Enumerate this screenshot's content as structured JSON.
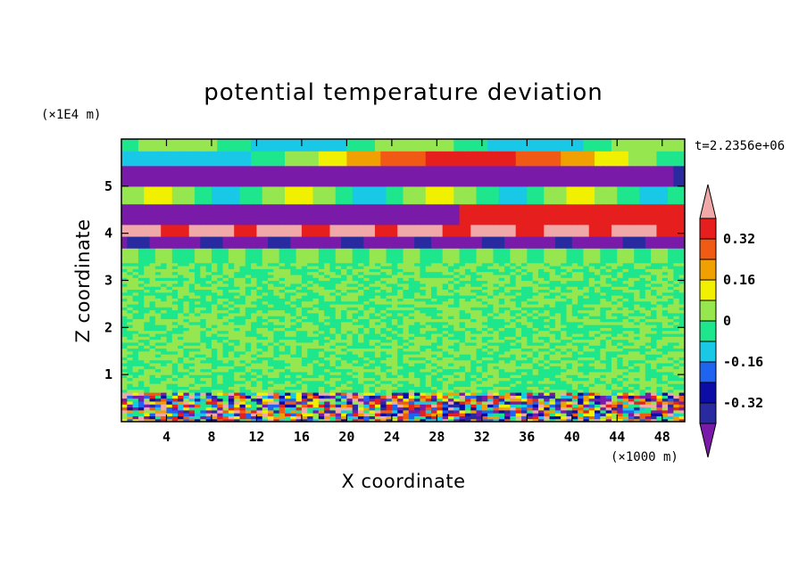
{
  "chart_data": {
    "type": "heatmap",
    "title": "potential temperature deviation",
    "xlabel": "X coordinate",
    "ylabel": "Z coordinate",
    "x_unit": "(×1000 m)",
    "y_unit": "(×1E4 m)",
    "time_label": "t=2.2356e+06",
    "xlim": [
      0,
      50
    ],
    "ylim": [
      0,
      6
    ],
    "x_ticks": [
      4,
      8,
      12,
      16,
      20,
      24,
      28,
      32,
      36,
      40,
      44,
      48
    ],
    "y_ticks": [
      1,
      2,
      3,
      4,
      5
    ],
    "colorbar": {
      "levels": [
        -0.48,
        -0.4,
        -0.32,
        -0.24,
        -0.16,
        -0.08,
        0,
        0.08,
        0.16,
        0.24,
        0.32,
        0.4
      ],
      "colors": [
        "#7a1aa8",
        "#2a2aa0",
        "#0c0ca6",
        "#1e64f0",
        "#19c8e6",
        "#1ee68c",
        "#96e650",
        "#f0f000",
        "#f0a000",
        "#f05a14",
        "#e61e1e",
        "#f0a8a8"
      ],
      "tick_labels": [
        "-0.32",
        "-0.16",
        "0",
        "0.16",
        "0.32"
      ],
      "tick_values": [
        -0.32,
        -0.16,
        0,
        0.16,
        0.32
      ]
    },
    "bands": [
      {
        "z0": 5.75,
        "z1": 6.0,
        "value": -0.05
      },
      {
        "z0": 5.45,
        "z1": 5.75,
        "value": 0.02
      },
      {
        "z0": 5.0,
        "z1": 5.45,
        "value": -0.1
      },
      {
        "z0": 4.6,
        "z1": 5.0,
        "value": 0.05
      },
      {
        "z0": 4.2,
        "z1": 4.6,
        "value": -0.45
      },
      {
        "z0": 3.7,
        "z1": 4.2,
        "value": 0.42
      },
      {
        "z0": 3.35,
        "z1": 3.7,
        "value": 0.0
      },
      {
        "z0": 0.65,
        "z1": 3.35,
        "value": 0.0
      },
      {
        "z0": 0.0,
        "z1": 0.65,
        "value": -0.1
      }
    ]
  }
}
